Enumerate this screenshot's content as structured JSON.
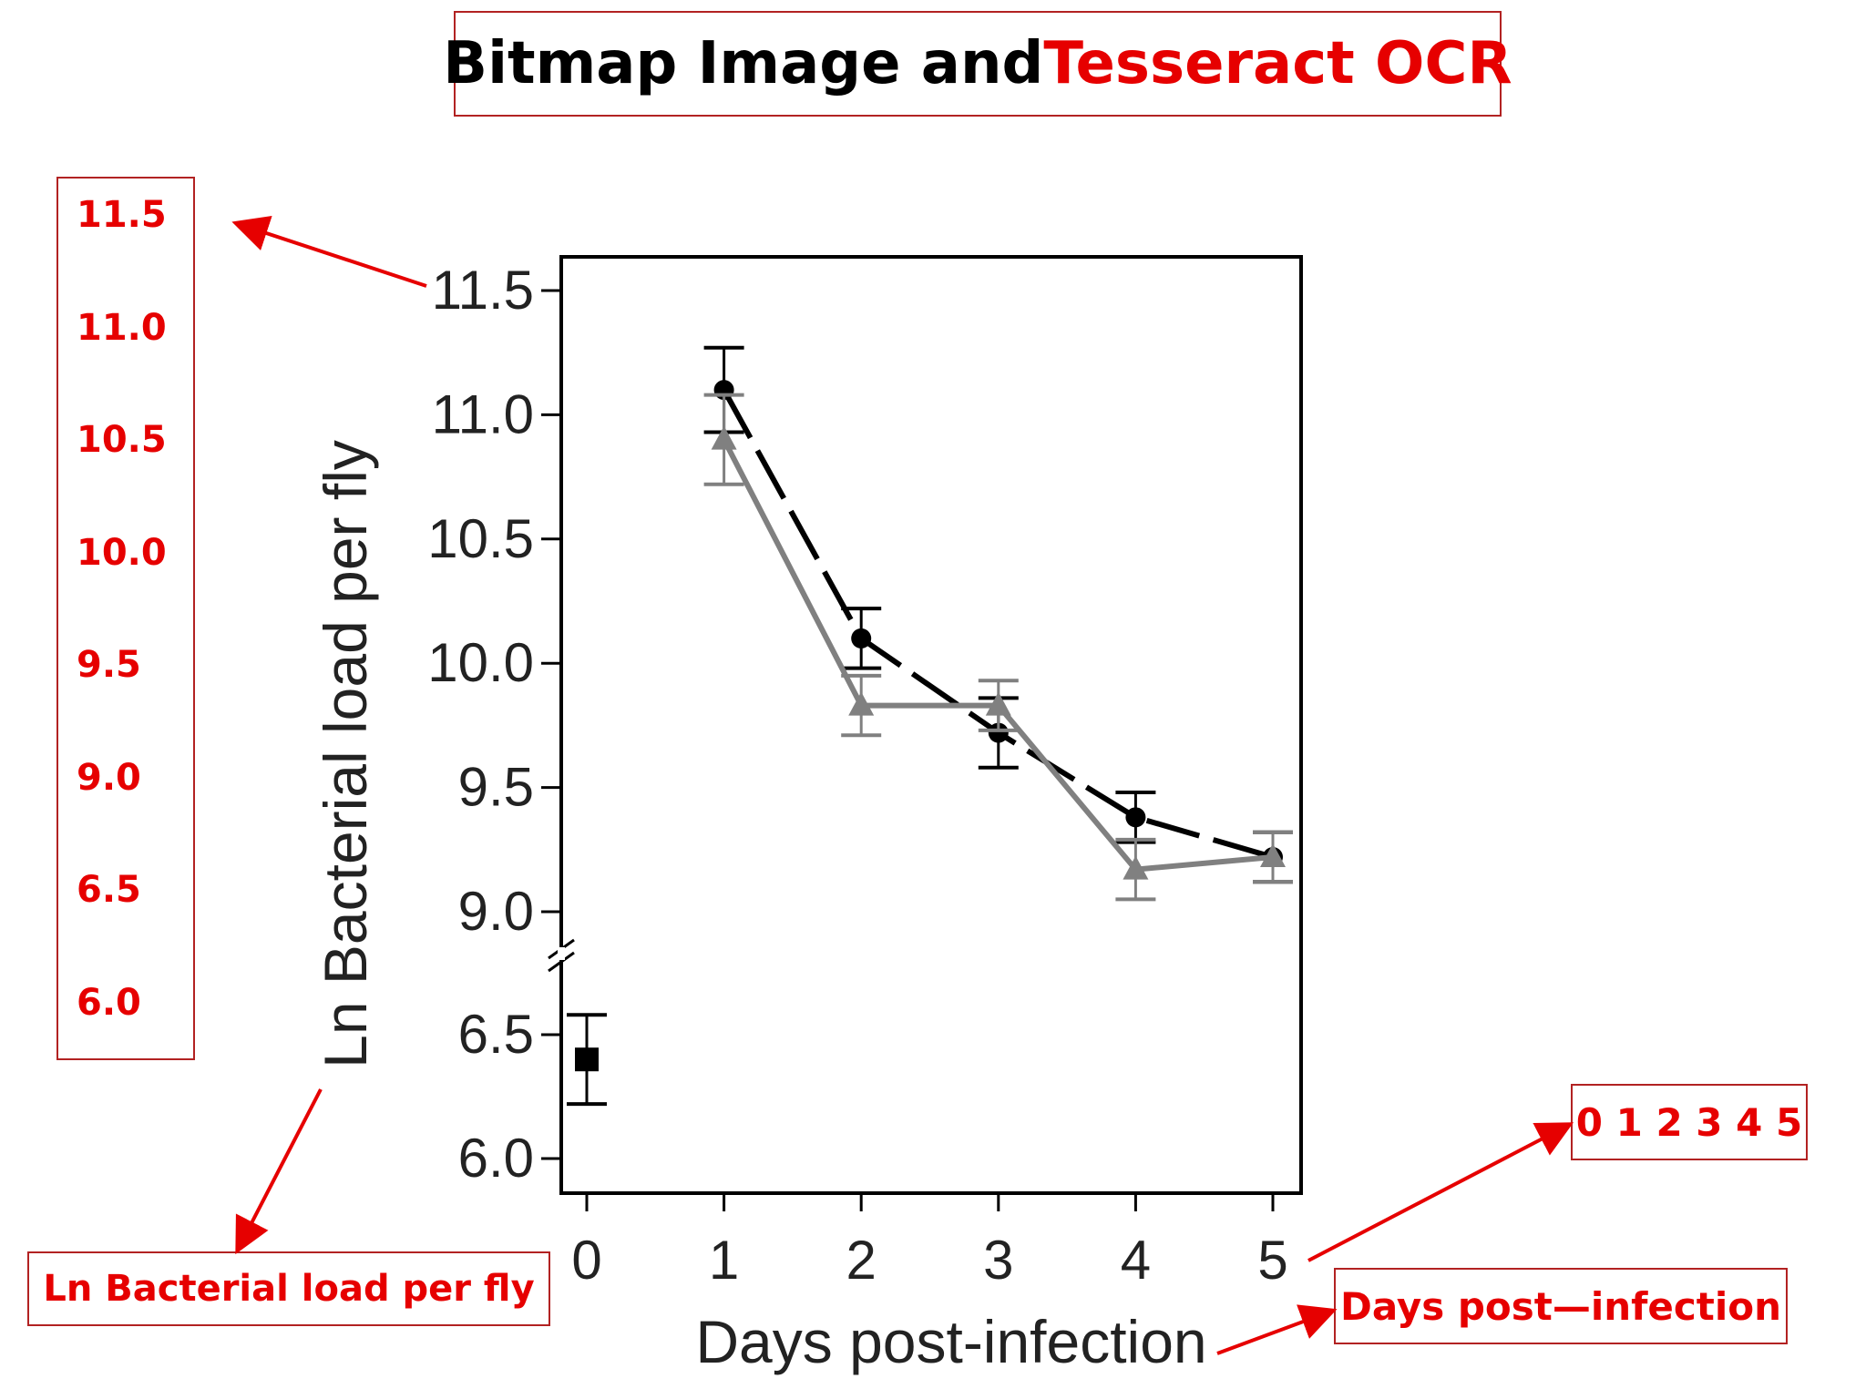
{
  "slide_title": {
    "part1": "Bitmap Image and ",
    "part2": "Tesseract OCR"
  },
  "ocr_output": {
    "y_ticks": [
      "11.5",
      "11.0",
      "10.5",
      "10.0",
      "9.5",
      "9.0",
      "6.5",
      "6.0"
    ],
    "y_label": "Ln Bacterial load per fly",
    "x_ticks": "0 1 2 3 4 5",
    "x_label": "Days post—infection"
  },
  "colors": {
    "ocr_red": "#e60000",
    "box_border": "#b22222",
    "series_black": "#000000",
    "series_gray": "#808080"
  },
  "chart_data": {
    "type": "line",
    "xlabel": "Days post-infection",
    "ylabel": "Ln Bacterial load per fly",
    "x_ticks": [
      "0",
      "1",
      "2",
      "3",
      "4",
      "5"
    ],
    "y_ticks": [
      "6.0",
      "6.5",
      "9.0",
      "9.5",
      "10.0",
      "10.5",
      "11.0",
      "11.5"
    ],
    "ylim_lower": [
      6.0,
      6.5
    ],
    "ylim_upper": [
      9.0,
      11.5
    ],
    "axis_break": true,
    "grid": false,
    "series": [
      {
        "marker": "circle",
        "color": "#000000",
        "dashed": true,
        "points": [
          {
            "x": 1,
            "y": 11.1,
            "err": 0.17
          },
          {
            "x": 2,
            "y": 10.1,
            "err": 0.12
          },
          {
            "x": 3,
            "y": 9.72,
            "err": 0.14
          },
          {
            "x": 4,
            "y": 9.38,
            "err": 0.1
          },
          {
            "x": 5,
            "y": 9.22,
            "err": 0.1
          }
        ]
      },
      {
        "marker": "triangle",
        "color": "#808080",
        "dashed": false,
        "points": [
          {
            "x": 1,
            "y": 10.9,
            "err": 0.18
          },
          {
            "x": 2,
            "y": 9.83,
            "err": 0.12
          },
          {
            "x": 3,
            "y": 9.83,
            "err": 0.1
          },
          {
            "x": 4,
            "y": 9.17,
            "err": 0.12
          },
          {
            "x": 5,
            "y": 9.22,
            "err": 0.1
          }
        ]
      },
      {
        "marker": "square",
        "color": "#000000",
        "dashed": false,
        "points": [
          {
            "x": 0,
            "y": 6.4,
            "err": 0.18
          }
        ]
      }
    ]
  }
}
